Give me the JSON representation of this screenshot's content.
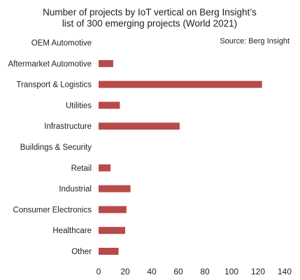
{
  "colors": {
    "bar": "#b84a4a",
    "grid": "#d0d0d0",
    "text": "#222222"
  },
  "chart_data": {
    "type": "bar",
    "orientation": "horizontal",
    "title": "Number of projects by IoT vertical on Berg Insight's list of 300 emerging projects (World 2021)",
    "title_lines": [
      "Number of projects by IoT vertical on Berg Insight’s",
      "list of 300 emerging projects (World 2021)"
    ],
    "source": "Source: Berg Insight",
    "categories": [
      "OEM Automotive",
      "Aftermarket Automotive",
      "Transport & Logistics",
      "Utilities",
      "Infrastructure",
      "Buildings & Security",
      "Retail",
      "Industrial",
      "Consumer Electronics",
      "Healthcare",
      "Other"
    ],
    "values": [
      0,
      11,
      123,
      16,
      61,
      0,
      9,
      24,
      21,
      20,
      15
    ],
    "xlim": [
      0,
      140
    ],
    "xticks": [
      0,
      20,
      40,
      60,
      80,
      100,
      120,
      140
    ],
    "grid": false,
    "xlabel": "",
    "ylabel": ""
  }
}
